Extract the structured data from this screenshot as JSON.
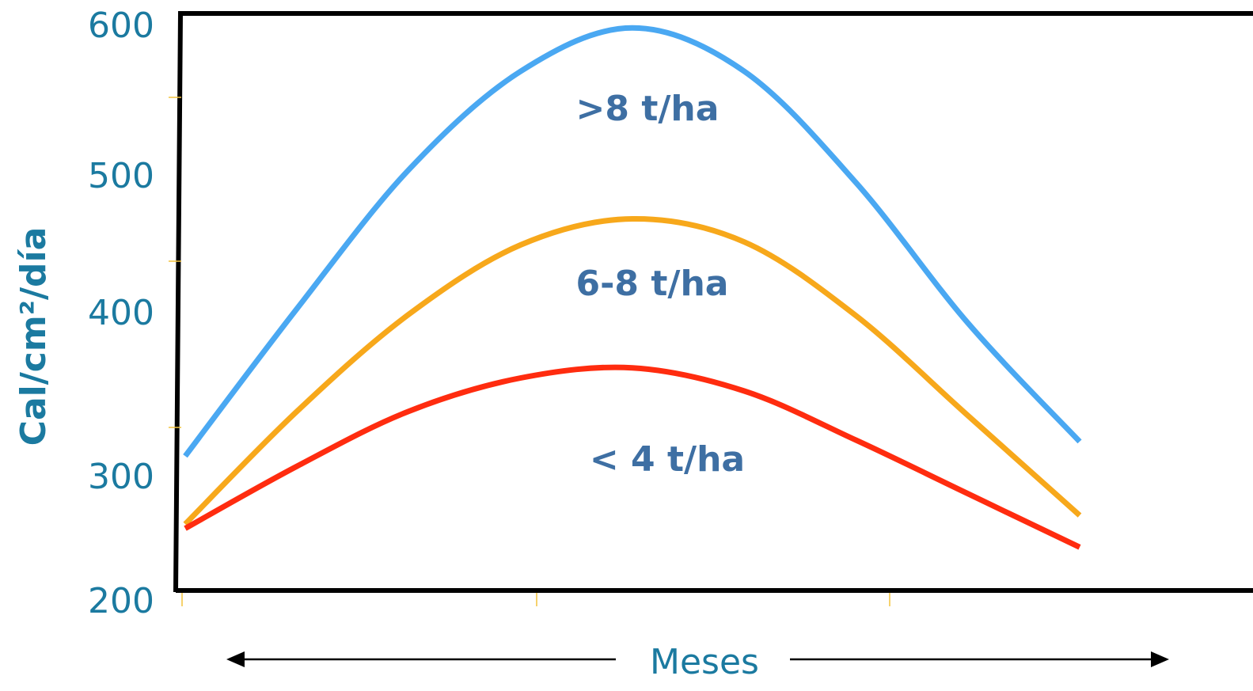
{
  "chart_data": {
    "type": "line",
    "title": "",
    "ylabel": "Cal/cm²/día",
    "xlabel": "Meses",
    "ylim": [
      200,
      600
    ],
    "yticks": [
      "600",
      "500",
      "400",
      "300",
      "200"
    ],
    "grid": false,
    "x": [
      0,
      1,
      2,
      3,
      4,
      5,
      6,
      7,
      8
    ],
    "series": [
      {
        "name": ">8 t/ha",
        "color": "#4aa8f2",
        "values": [
          294,
          396,
          492,
          560,
          590,
          560,
          483,
          386,
          304
        ]
      },
      {
        "name": "6-8 t/ha",
        "color": "#f7a81b",
        "values": [
          247,
          325,
          392,
          440,
          458,
          442,
          391,
          322,
          253
        ]
      },
      {
        "name": "< 4 t/ha",
        "color": "#ff2c0f",
        "values": [
          244,
          287,
          325,
          348,
          355,
          339,
          305,
          268,
          231
        ]
      }
    ]
  }
}
